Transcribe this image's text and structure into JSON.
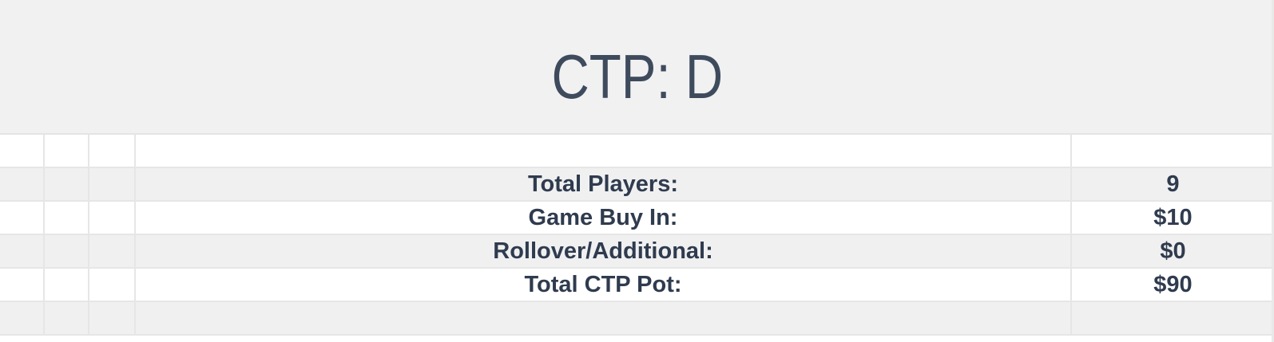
{
  "header": {
    "title": "CTP: D"
  },
  "summary_table": {
    "rows": [
      {
        "label": "",
        "value": ""
      },
      {
        "label": "Total Players:",
        "value": "9"
      },
      {
        "label": "Game Buy In:",
        "value": "$10"
      },
      {
        "label": "Rollover/Additional:",
        "value": "$0"
      },
      {
        "label": "Total CTP Pot:",
        "value": "$90"
      },
      {
        "label": "",
        "value": ""
      }
    ]
  },
  "colors": {
    "header_background": "#f1f1f2",
    "stripe_row_background": "#f0f0f1",
    "white_row_background": "#ffffff",
    "grid_line": "#e4e4e4",
    "title_text": "#3e4b5d",
    "table_text": "#2f3b4e"
  }
}
